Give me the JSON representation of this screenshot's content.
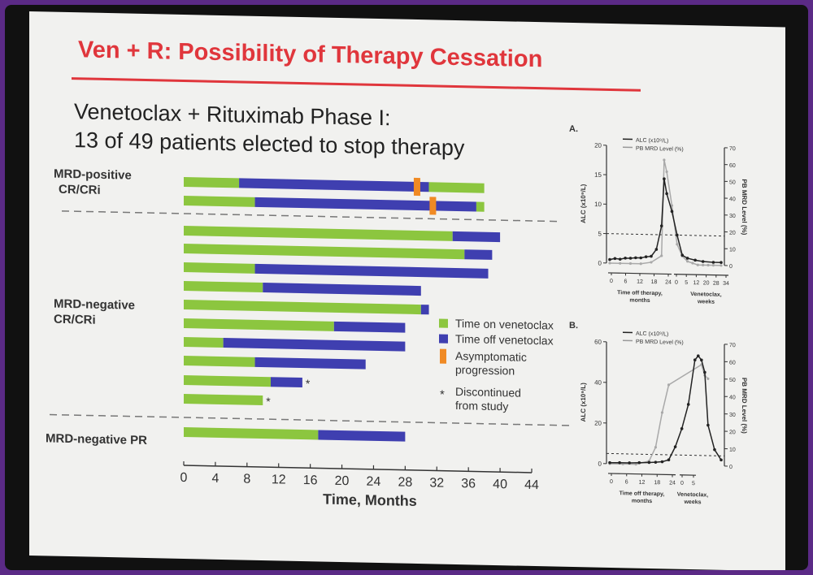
{
  "slide": {
    "title": "Ven + R: Possibility of Therapy Cessation",
    "subtitle_line1": "Venetoclax + Rituximab Phase I:",
    "subtitle_line2": "13 of 49 patients elected to stop therapy"
  },
  "colors": {
    "title_red": "#e0363c",
    "on_venetoclax": "#8cc63f",
    "off_venetoclax": "#3f3fb0",
    "progression": "#f08a24"
  },
  "chart_data": [
    {
      "type": "bar",
      "subtype": "swimmer",
      "xlabel": "Time, Months",
      "xlim": [
        0,
        44
      ],
      "xticks": [
        0,
        4,
        8,
        12,
        16,
        20,
        24,
        28,
        32,
        36,
        40,
        44
      ],
      "groups": [
        {
          "label_line1": "MRD-positive",
          "label_line2": "CR/CRi"
        },
        {
          "label_line1": "MRD-negative",
          "label_line2": "CR/CRi"
        },
        {
          "label_line1": "MRD-negative PR",
          "label_line2": ""
        }
      ],
      "legend": [
        {
          "label": "Time on venetoclax",
          "kind": "on"
        },
        {
          "label": "Time off venetoclax",
          "kind": "off"
        },
        {
          "label": "Asymptomatic",
          "label2": "progression",
          "kind": "prog"
        },
        {
          "label": "Discontinued",
          "label2": "from study",
          "kind": "star",
          "symbol": "*"
        }
      ],
      "patients": [
        {
          "group": 0,
          "segments": [
            {
              "kind": "on",
              "start": 0,
              "end": 7
            },
            {
              "kind": "off",
              "start": 7,
              "end": 31
            },
            {
              "kind": "on",
              "start": 31,
              "end": 38
            }
          ],
          "progression": 29.5,
          "discontinued": false
        },
        {
          "group": 0,
          "segments": [
            {
              "kind": "on",
              "start": 0,
              "end": 9
            },
            {
              "kind": "off",
              "start": 9,
              "end": 37
            },
            {
              "kind": "on",
              "start": 37,
              "end": 38
            }
          ],
          "progression": 31.5,
          "discontinued": false
        },
        {
          "group": 1,
          "segments": [
            {
              "kind": "on",
              "start": 0,
              "end": 34
            },
            {
              "kind": "off",
              "start": 34,
              "end": 40
            }
          ],
          "progression": null,
          "discontinued": false
        },
        {
          "group": 1,
          "segments": [
            {
              "kind": "on",
              "start": 0,
              "end": 35.5
            },
            {
              "kind": "off",
              "start": 35.5,
              "end": 39
            }
          ],
          "progression": null,
          "discontinued": false
        },
        {
          "group": 1,
          "segments": [
            {
              "kind": "on",
              "start": 0,
              "end": 9
            },
            {
              "kind": "off",
              "start": 9,
              "end": 38.5
            }
          ],
          "progression": null,
          "discontinued": false
        },
        {
          "group": 1,
          "segments": [
            {
              "kind": "on",
              "start": 0,
              "end": 10
            },
            {
              "kind": "off",
              "start": 10,
              "end": 30
            }
          ],
          "progression": null,
          "discontinued": false
        },
        {
          "group": 1,
          "segments": [
            {
              "kind": "on",
              "start": 0,
              "end": 30
            },
            {
              "kind": "off",
              "start": 30,
              "end": 31
            }
          ],
          "progression": null,
          "discontinued": false
        },
        {
          "group": 1,
          "segments": [
            {
              "kind": "on",
              "start": 0,
              "end": 19
            },
            {
              "kind": "off",
              "start": 19,
              "end": 28
            }
          ],
          "progression": null,
          "discontinued": false
        },
        {
          "group": 1,
          "segments": [
            {
              "kind": "on",
              "start": 0,
              "end": 5
            },
            {
              "kind": "off",
              "start": 5,
              "end": 28
            }
          ],
          "progression": null,
          "discontinued": false
        },
        {
          "group": 1,
          "segments": [
            {
              "kind": "on",
              "start": 0,
              "end": 9
            },
            {
              "kind": "off",
              "start": 9,
              "end": 23
            }
          ],
          "progression": null,
          "discontinued": false
        },
        {
          "group": 1,
          "segments": [
            {
              "kind": "on",
              "start": 0,
              "end": 11
            },
            {
              "kind": "off",
              "start": 11,
              "end": 15
            }
          ],
          "progression": null,
          "discontinued": true
        },
        {
          "group": 1,
          "segments": [
            {
              "kind": "on",
              "start": 0,
              "end": 10
            }
          ],
          "progression": null,
          "discontinued": true
        },
        {
          "group": 2,
          "segments": [
            {
              "kind": "on",
              "start": 0,
              "end": 17
            },
            {
              "kind": "off",
              "start": 17,
              "end": 28
            }
          ],
          "progression": null,
          "discontinued": false
        }
      ]
    },
    {
      "type": "line",
      "panel": "A.",
      "ylabel": "ALC (x10⁹/L)",
      "y2label": "PB MRD Level (%)",
      "ylim": [
        0,
        20
      ],
      "yticks": [
        0,
        5,
        10,
        15,
        20
      ],
      "y2lim": [
        0,
        70
      ],
      "y2ticks": [
        0,
        10,
        20,
        30,
        40,
        50,
        60,
        70
      ],
      "threshold_y": 5,
      "xaxis_left_label": "Time off therapy, months",
      "xaxis_left_ticks": [
        "0",
        "6",
        "12",
        "18",
        "24"
      ],
      "xaxis_right_label": "Venetoclax, weeks",
      "xaxis_right_ticks": [
        "0",
        "5",
        "12",
        "20",
        "28",
        "34"
      ],
      "series": [
        {
          "name": "ALC (x10⁹/L)",
          "axis": "left",
          "x": [
            0,
            2,
            4,
            6,
            8,
            10,
            12,
            14,
            16,
            18,
            20,
            21,
            22,
            24,
            26,
            28,
            30,
            33,
            36,
            40,
            43
          ],
          "y": [
            0.6,
            0.8,
            0.7,
            0.9,
            0.9,
            1.0,
            1.0,
            1.2,
            1.3,
            2.5,
            6.5,
            14.5,
            12,
            9,
            5,
            1.6,
            1.1,
            0.8,
            0.6,
            0.5,
            0.5
          ]
        },
        {
          "name": "PB MRD Level (%)",
          "axis": "right",
          "x": [
            0,
            4,
            8,
            12,
            16,
            20,
            21,
            22,
            24,
            26,
            28,
            30,
            32,
            34,
            36,
            38,
            40,
            43
          ],
          "y": [
            0,
            0,
            0,
            0,
            1,
            5,
            62,
            55,
            35,
            12,
            5,
            2,
            1,
            0,
            0,
            0,
            0,
            0
          ]
        }
      ]
    },
    {
      "type": "line",
      "panel": "B.",
      "ylabel": "ALC (x10⁹/L)",
      "y2label": "PB MRD Level (%)",
      "ylim": [
        0,
        60
      ],
      "yticks": [
        0,
        20,
        40,
        60
      ],
      "y2lim": [
        0,
        70
      ],
      "y2ticks": [
        0,
        10,
        20,
        30,
        40,
        50,
        60,
        70
      ],
      "threshold_y": 5,
      "xaxis_left_label": "Time off therapy, months",
      "xaxis_left_ticks": [
        "0",
        "6",
        "12",
        "18",
        "24"
      ],
      "xaxis_right_label": "Venetoclax, weeks",
      "xaxis_right_ticks": [
        "0",
        "5"
      ],
      "series": [
        {
          "name": "ALC (x10⁹/L)",
          "axis": "left",
          "x": [
            0,
            3,
            6,
            9,
            12,
            14,
            16,
            18,
            20,
            22,
            24,
            26,
            27,
            28,
            29,
            30,
            32,
            34
          ],
          "y": [
            0.5,
            0.6,
            0.6,
            0.8,
            1.0,
            1.2,
            1.5,
            2.5,
            9,
            18,
            30,
            52,
            54,
            52,
            46,
            20,
            8,
            3
          ]
        },
        {
          "name": "PB MRD Level (%)",
          "axis": "right",
          "x": [
            0,
            4,
            8,
            12,
            14,
            16,
            18,
            28,
            29,
            30
          ],
          "y": [
            0,
            0,
            0,
            2,
            10,
            30,
            46,
            58,
            52,
            50
          ]
        }
      ]
    }
  ]
}
